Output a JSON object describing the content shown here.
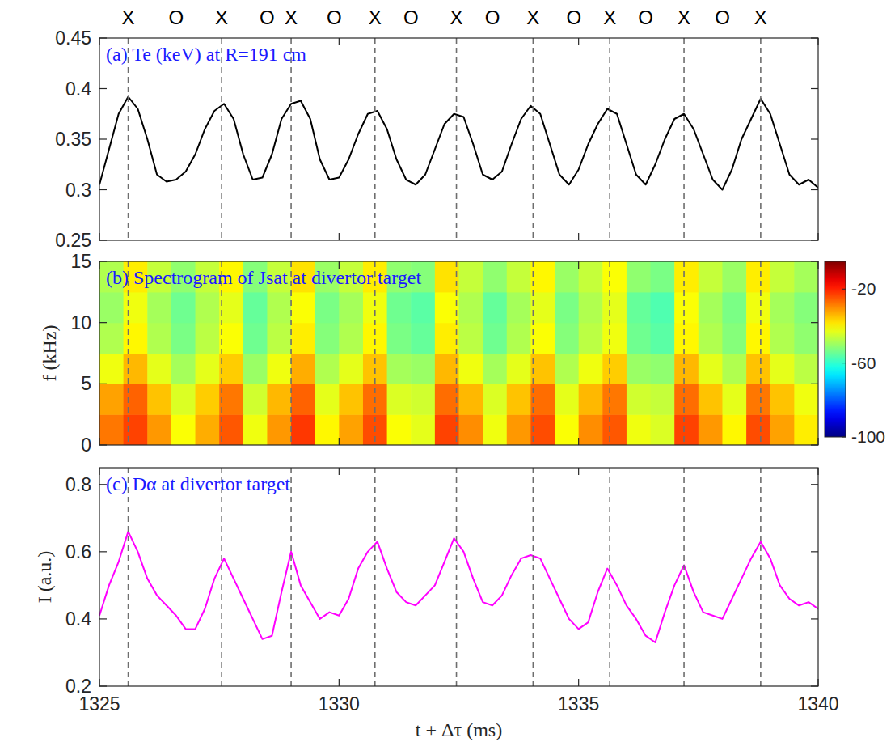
{
  "chart_data": [
    {
      "type": "line",
      "title": "(a) Te (keV) at R=191 cm",
      "color": "#000000",
      "tick_labels": "y",
      "grid": false,
      "xlim": [
        1325,
        1340
      ],
      "xticks": [
        1325,
        1330,
        1335,
        1340
      ],
      "ylim": [
        0.25,
        0.45
      ],
      "yticks": [
        0.25,
        0.3,
        0.35,
        0.4,
        0.45
      ],
      "x": [
        1325,
        1325.2,
        1325.4,
        1325.6,
        1325.8,
        1326,
        1326.2,
        1326.4,
        1326.6,
        1326.8,
        1327,
        1327.2,
        1327.4,
        1327.6,
        1327.8,
        1328,
        1328.2,
        1328.4,
        1328.6,
        1328.8,
        1329,
        1329.2,
        1329.4,
        1329.6,
        1329.8,
        1330,
        1330.2,
        1330.4,
        1330.6,
        1330.8,
        1331,
        1331.2,
        1331.4,
        1331.6,
        1331.8,
        1332,
        1332.2,
        1332.4,
        1332.6,
        1332.8,
        1333,
        1333.2,
        1333.4,
        1333.6,
        1333.8,
        1334,
        1334.2,
        1334.4,
        1334.6,
        1334.8,
        1335,
        1335.2,
        1335.4,
        1335.6,
        1335.8,
        1336,
        1336.2,
        1336.4,
        1336.6,
        1336.8,
        1337,
        1337.2,
        1337.4,
        1337.6,
        1337.8,
        1338,
        1338.2,
        1338.4,
        1338.6,
        1338.8,
        1339,
        1339.2,
        1339.4,
        1339.6,
        1339.8,
        1340
      ],
      "values": [
        0.305,
        0.34,
        0.375,
        0.392,
        0.38,
        0.35,
        0.315,
        0.308,
        0.31,
        0.318,
        0.335,
        0.36,
        0.378,
        0.385,
        0.37,
        0.335,
        0.31,
        0.312,
        0.335,
        0.37,
        0.385,
        0.388,
        0.37,
        0.33,
        0.31,
        0.312,
        0.33,
        0.355,
        0.375,
        0.378,
        0.36,
        0.33,
        0.31,
        0.305,
        0.315,
        0.34,
        0.365,
        0.375,
        0.372,
        0.345,
        0.315,
        0.31,
        0.318,
        0.345,
        0.37,
        0.383,
        0.375,
        0.345,
        0.315,
        0.305,
        0.32,
        0.345,
        0.365,
        0.38,
        0.375,
        0.345,
        0.315,
        0.305,
        0.325,
        0.35,
        0.37,
        0.375,
        0.36,
        0.335,
        0.31,
        0.3,
        0.32,
        0.35,
        0.37,
        0.39,
        0.375,
        0.345,
        0.315,
        0.305,
        0.31,
        0.302
      ],
      "vlines": [
        1325.6,
        1327.55,
        1329.0,
        1330.75,
        1332.45,
        1334.05,
        1335.65,
        1337.2,
        1338.8
      ],
      "annotations": [
        {
          "x": 1325.6,
          "label": "X"
        },
        {
          "x": 1326.6,
          "label": "O"
        },
        {
          "x": 1327.55,
          "label": "X"
        },
        {
          "x": 1328.5,
          "label": "O"
        },
        {
          "x": 1329.0,
          "label": "X"
        },
        {
          "x": 1329.9,
          "label": "O"
        },
        {
          "x": 1330.75,
          "label": "X"
        },
        {
          "x": 1331.5,
          "label": "O"
        },
        {
          "x": 1332.45,
          "label": "X"
        },
        {
          "x": 1333.2,
          "label": "O"
        },
        {
          "x": 1334.05,
          "label": "X"
        },
        {
          "x": 1334.9,
          "label": "O"
        },
        {
          "x": 1335.65,
          "label": "X"
        },
        {
          "x": 1336.4,
          "label": "O"
        },
        {
          "x": 1337.2,
          "label": "X"
        },
        {
          "x": 1338.0,
          "label": "O"
        },
        {
          "x": 1338.8,
          "label": "X"
        }
      ]
    },
    {
      "type": "heatmap",
      "title": "(b) Spectrogram of Jsat at divertor target",
      "ylabel": "f (kHz)",
      "tick_labels": "y",
      "grid": false,
      "xlim": [
        1325,
        1340
      ],
      "xticks": [
        1325,
        1330,
        1335,
        1340
      ],
      "ylim": [
        0,
        15
      ],
      "yticks": [
        0,
        5,
        10,
        15
      ],
      "x_edges": [
        1325,
        1325.5,
        1326,
        1326.5,
        1327,
        1327.5,
        1328,
        1328.5,
        1329,
        1329.5,
        1330,
        1330.5,
        1331,
        1331.5,
        1332,
        1332.5,
        1333,
        1333.5,
        1334,
        1334.5,
        1335,
        1335.5,
        1336,
        1336.5,
        1337,
        1337.5,
        1338,
        1338.5,
        1339,
        1339.5,
        1340
      ],
      "y_edges": [
        0,
        2.5,
        5,
        7.5,
        10,
        12.5,
        15
      ],
      "cells": [
        [
          -28,
          -23,
          -31,
          -41,
          -33,
          -25,
          -42,
          -31,
          -22,
          -40,
          -32,
          -24,
          -41,
          -43,
          -23,
          -30,
          -42,
          -31,
          -24,
          -41,
          -30,
          -25,
          -42,
          -44,
          -23,
          -31,
          -40,
          -24,
          -32,
          -39
        ],
        [
          -32,
          -26,
          -35,
          -44,
          -36,
          -28,
          -45,
          -34,
          -26,
          -43,
          -35,
          -27,
          -44,
          -45,
          -27,
          -34,
          -44,
          -35,
          -27,
          -43,
          -34,
          -28,
          -45,
          -46,
          -27,
          -35,
          -43,
          -28,
          -35,
          -42
        ],
        [
          -42,
          -34,
          -43,
          -49,
          -43,
          -36,
          -50,
          -42,
          -33,
          -48,
          -43,
          -35,
          -49,
          -50,
          -34,
          -42,
          -49,
          -43,
          -35,
          -48,
          -42,
          -36,
          -50,
          -51,
          -34,
          -43,
          -48,
          -35,
          -43,
          -47
        ],
        [
          -48,
          -40,
          -48,
          -53,
          -47,
          -41,
          -54,
          -47,
          -39,
          -52,
          -48,
          -40,
          -53,
          -55,
          -39,
          -47,
          -54,
          -48,
          -41,
          -52,
          -47,
          -42,
          -54,
          -56,
          -40,
          -48,
          -52,
          -40,
          -48,
          -51
        ],
        [
          -50,
          -42,
          -49,
          -54,
          -48,
          -43,
          -55,
          -48,
          -41,
          -53,
          -49,
          -42,
          -54,
          -56,
          -41,
          -48,
          -55,
          -49,
          -43,
          -53,
          -48,
          -43,
          -55,
          -57,
          -41,
          -49,
          -53,
          -42,
          -49,
          -52
        ],
        [
          -48,
          -39,
          -46,
          -51,
          -46,
          -40,
          -52,
          -46,
          -38,
          -50,
          -46,
          -39,
          -51,
          -52,
          -38,
          -46,
          -51,
          -46,
          -40,
          -50,
          -46,
          -41,
          -51,
          -53,
          -39,
          -46,
          -50,
          -39,
          -46,
          -49
        ]
      ],
      "colorbar": {
        "range": [
          -100,
          -5
        ],
        "ticks": [
          -20,
          -60,
          -100
        ]
      },
      "vlines": [
        1325.6,
        1327.55,
        1329.0,
        1330.75,
        1332.45,
        1334.05,
        1335.65,
        1337.2,
        1338.8
      ]
    },
    {
      "type": "line",
      "title": "(c) Dα at divertor target",
      "ylabel": "I (a.u.)",
      "xlabel": "t + Δτ (ms)",
      "color": "#ff00ff",
      "grid": false,
      "xlim": [
        1325,
        1340
      ],
      "xticks": [
        1325,
        1330,
        1335,
        1340
      ],
      "ylim": [
        0.2,
        0.85
      ],
      "yticks": [
        0.2,
        0.4,
        0.6,
        0.8
      ],
      "x": [
        1325,
        1325.2,
        1325.4,
        1325.6,
        1325.8,
        1326,
        1326.2,
        1326.4,
        1326.6,
        1326.8,
        1327,
        1327.2,
        1327.4,
        1327.6,
        1327.8,
        1328,
        1328.2,
        1328.4,
        1328.6,
        1328.8,
        1329,
        1329.2,
        1329.4,
        1329.6,
        1329.8,
        1330,
        1330.2,
        1330.4,
        1330.6,
        1330.8,
        1331,
        1331.2,
        1331.4,
        1331.6,
        1331.8,
        1332,
        1332.2,
        1332.4,
        1332.6,
        1332.8,
        1333,
        1333.2,
        1333.4,
        1333.6,
        1333.8,
        1334,
        1334.2,
        1334.4,
        1334.6,
        1334.8,
        1335,
        1335.2,
        1335.4,
        1335.6,
        1335.8,
        1336,
        1336.2,
        1336.4,
        1336.6,
        1336.8,
        1337,
        1337.2,
        1337.4,
        1337.6,
        1337.8,
        1338,
        1338.2,
        1338.4,
        1338.6,
        1338.8,
        1339,
        1339.2,
        1339.4,
        1339.6,
        1339.8,
        1340
      ],
      "values": [
        0.41,
        0.5,
        0.57,
        0.66,
        0.6,
        0.52,
        0.47,
        0.44,
        0.41,
        0.37,
        0.37,
        0.43,
        0.52,
        0.58,
        0.52,
        0.46,
        0.4,
        0.34,
        0.35,
        0.48,
        0.6,
        0.5,
        0.45,
        0.4,
        0.42,
        0.41,
        0.46,
        0.55,
        0.6,
        0.63,
        0.55,
        0.48,
        0.45,
        0.44,
        0.47,
        0.5,
        0.57,
        0.64,
        0.6,
        0.52,
        0.45,
        0.44,
        0.47,
        0.53,
        0.58,
        0.59,
        0.58,
        0.52,
        0.46,
        0.4,
        0.37,
        0.39,
        0.48,
        0.55,
        0.5,
        0.44,
        0.4,
        0.35,
        0.33,
        0.42,
        0.5,
        0.56,
        0.48,
        0.42,
        0.41,
        0.4,
        0.46,
        0.52,
        0.58,
        0.63,
        0.58,
        0.5,
        0.46,
        0.44,
        0.45,
        0.43
      ],
      "vlines": [
        1325.6,
        1327.55,
        1329.0,
        1330.75,
        1332.45,
        1334.05,
        1335.65,
        1337.2,
        1338.8
      ]
    }
  ]
}
